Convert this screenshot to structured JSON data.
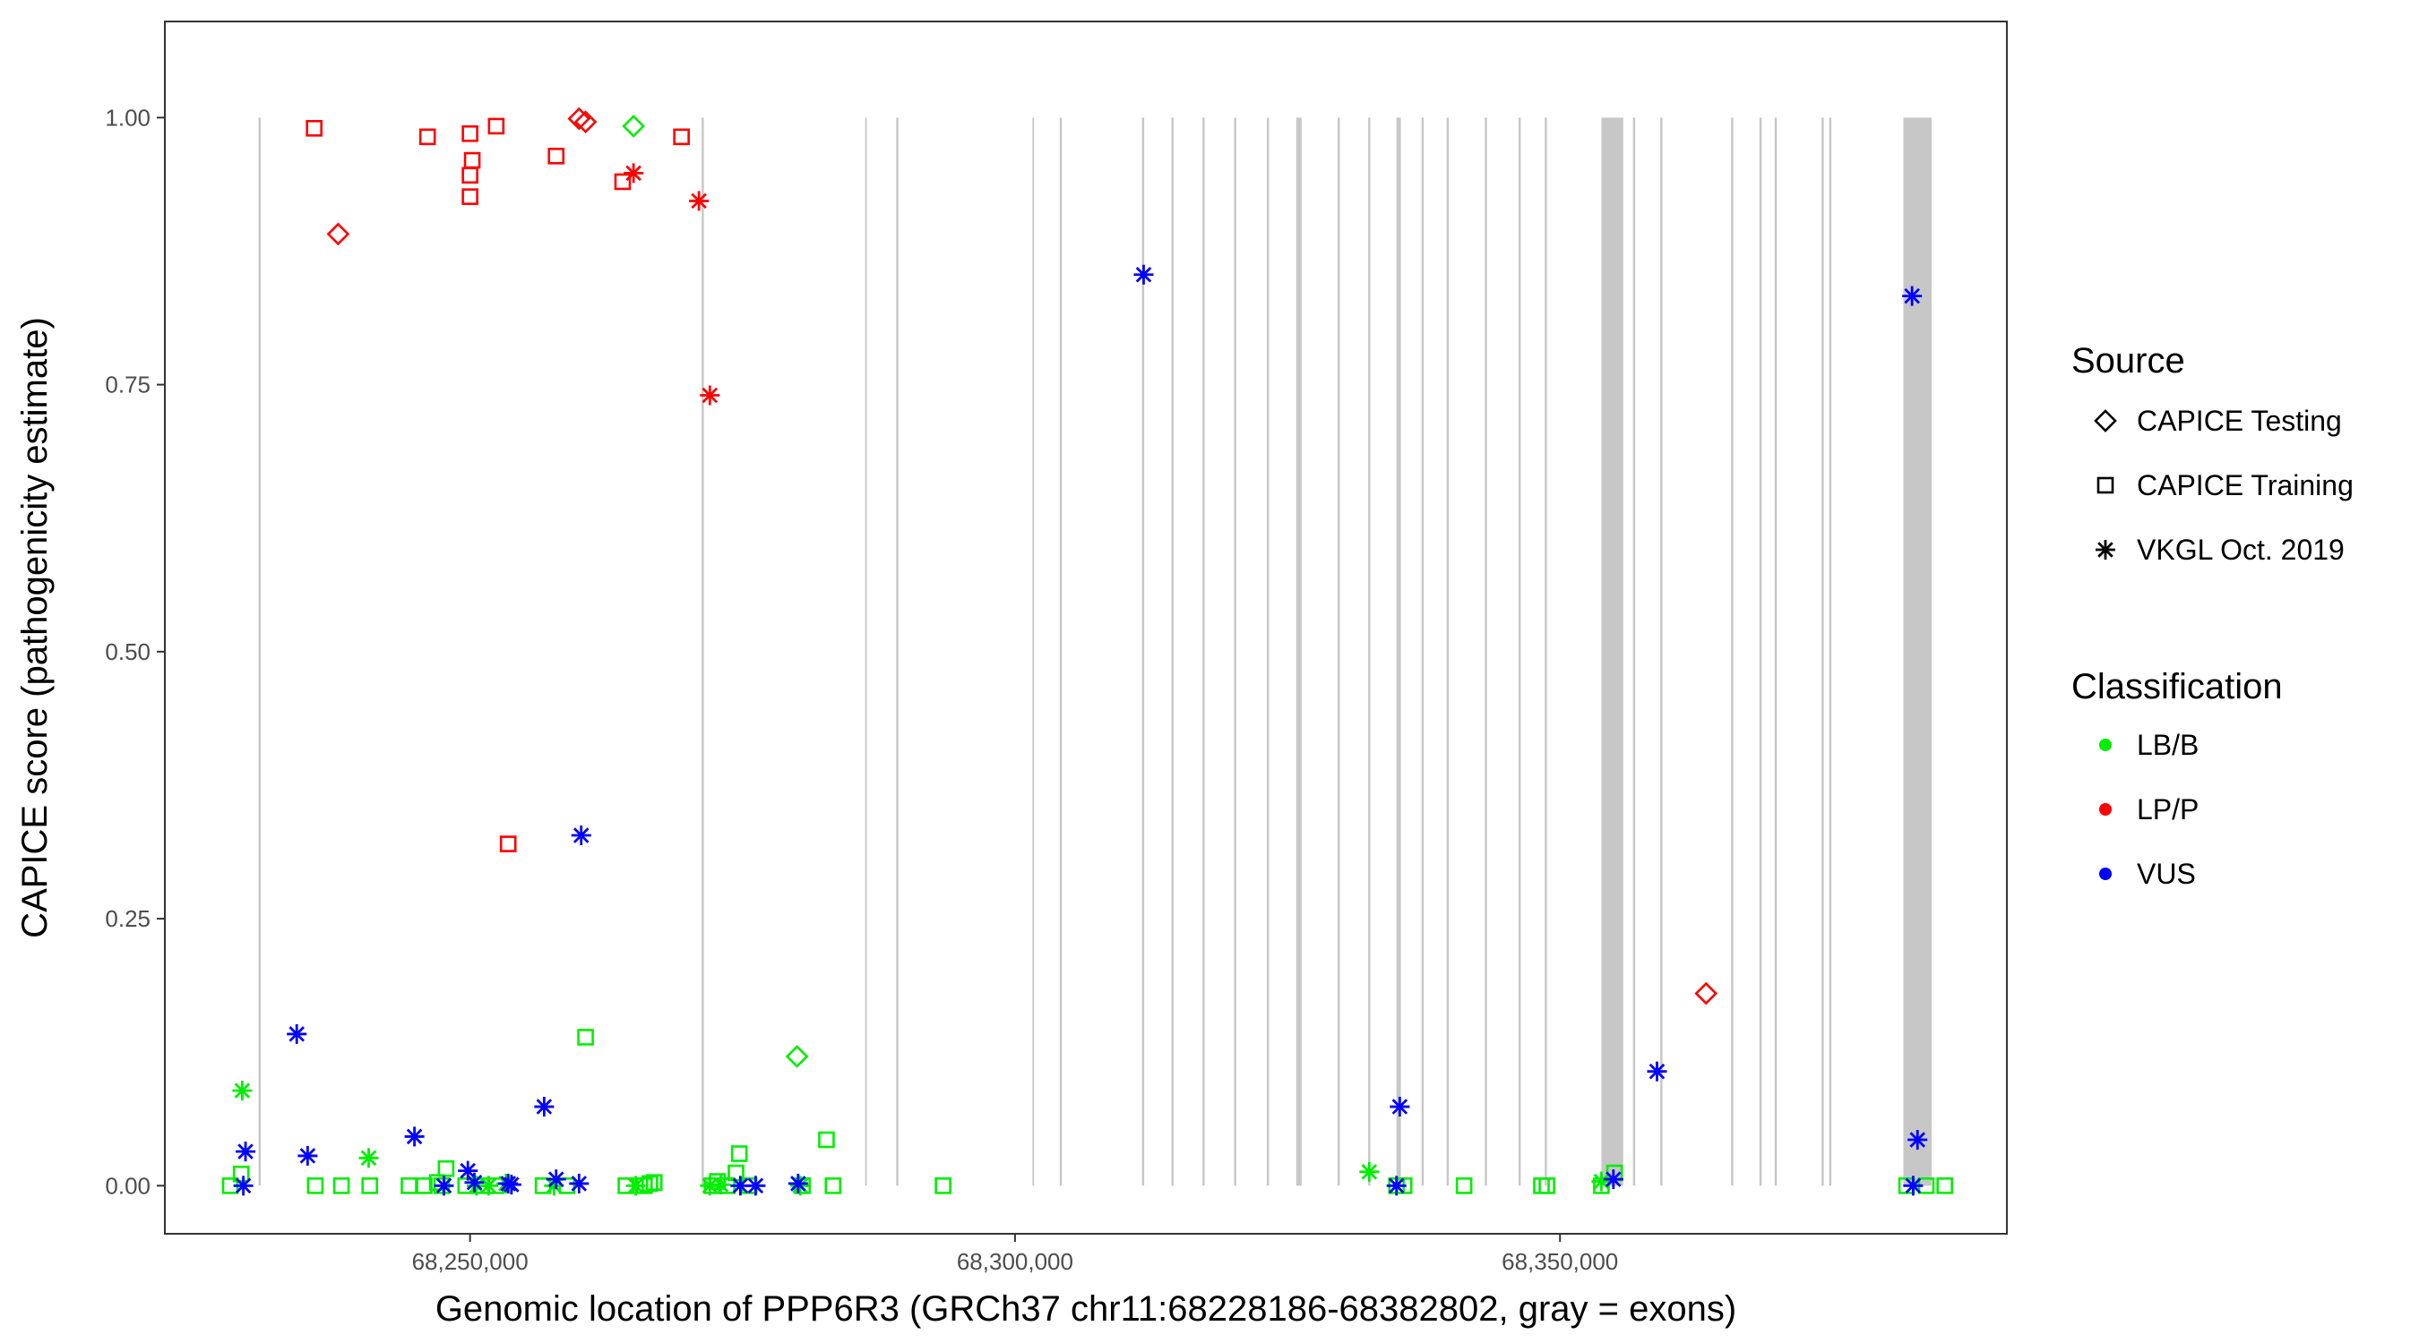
{
  "chart_data": {
    "type": "scatter",
    "xlabel": "Genomic location of PPP6R3 (GRCh37 chr11:68228186-68382802, gray = exons)",
    "ylabel": "CAPICE score (pathogenicity estimate)",
    "xlim": [
      68222000,
      68391000
    ],
    "ylim": [
      -0.045,
      1.09
    ],
    "x_ticks": [
      {
        "value": 68250000,
        "label": "68,250,000"
      },
      {
        "value": 68300000,
        "label": "68,300,000"
      },
      {
        "value": 68350000,
        "label": "68,350,000"
      }
    ],
    "y_ticks": [
      {
        "value": 0.0,
        "label": "0.00"
      },
      {
        "value": 0.25,
        "label": "0.25"
      },
      {
        "value": 0.5,
        "label": "0.50"
      },
      {
        "value": 0.75,
        "label": "0.75"
      },
      {
        "value": 1.0,
        "label": "1.00"
      }
    ],
    "grid": false,
    "exons": [
      [
        68230600,
        68230800
      ],
      [
        68271250,
        68271450
      ],
      [
        68286250,
        68286400
      ],
      [
        68289100,
        68289300
      ],
      [
        68301600,
        68301750
      ],
      [
        68304100,
        68304300
      ],
      [
        68311650,
        68311850
      ],
      [
        68314350,
        68314550
      ],
      [
        68317200,
        68317400
      ],
      [
        68320100,
        68320300
      ],
      [
        68323100,
        68323300
      ],
      [
        68325800,
        68326300
      ],
      [
        68329600,
        68329800
      ],
      [
        68332400,
        68332600
      ],
      [
        68335000,
        68335400
      ],
      [
        68337300,
        68337500
      ],
      [
        68339600,
        68339800
      ],
      [
        68343100,
        68343300
      ],
      [
        68346200,
        68346400
      ],
      [
        68348600,
        68348800
      ],
      [
        68353800,
        68355800
      ],
      [
        68356700,
        68356900
      ],
      [
        68359200,
        68359400
      ],
      [
        68365700,
        68365900
      ],
      [
        68368300,
        68368500
      ],
      [
        68369700,
        68369900
      ],
      [
        68374000,
        68374200
      ],
      [
        68374700,
        68374900
      ],
      [
        68381500,
        68384100
      ]
    ],
    "legend": {
      "position": "right",
      "source_title": "Source",
      "source_entries": [
        {
          "label": "CAPICE Testing",
          "shape": "diamond"
        },
        {
          "label": "CAPICE Training",
          "shape": "square"
        },
        {
          "label": "VKGL Oct. 2019",
          "shape": "asterisk"
        }
      ],
      "class_title": "Classification",
      "class_entries": [
        {
          "label": "LB/B",
          "color": "#00ee00"
        },
        {
          "label": "LP/P",
          "color": "#ff0000"
        },
        {
          "label": "VUS",
          "color": "#0000ff"
        }
      ]
    },
    "series": [
      {
        "source": "CAPICE Testing",
        "classification": "LP/P",
        "points": [
          [
            68237900,
            0.891
          ],
          [
            68260000,
            0.999
          ],
          [
            68260600,
            0.996
          ],
          [
            68363400,
            0.18
          ]
        ]
      },
      {
        "source": "CAPICE Testing",
        "classification": "LB/B",
        "points": [
          [
            68265000,
            0.992
          ],
          [
            68280000,
            0.121
          ]
        ]
      },
      {
        "source": "CAPICE Training",
        "classification": "LP/P",
        "points": [
          [
            68235700,
            0.99
          ],
          [
            68246100,
            0.982
          ],
          [
            68250000,
            0.985
          ],
          [
            68250200,
            0.96
          ],
          [
            68250000,
            0.946
          ],
          [
            68250000,
            0.926
          ],
          [
            68252400,
            0.992
          ],
          [
            68253500,
            0.32
          ],
          [
            68257900,
            0.964
          ],
          [
            68264000,
            0.94
          ],
          [
            68269400,
            0.982
          ]
        ]
      },
      {
        "source": "CAPICE Training",
        "classification": "LB/B",
        "points": [
          [
            68228000,
            0.0
          ],
          [
            68229000,
            0.011
          ],
          [
            68235800,
            0.0
          ],
          [
            68238200,
            0.0
          ],
          [
            68240800,
            0.0
          ],
          [
            68244400,
            0.0
          ],
          [
            68245800,
            0.0
          ],
          [
            68247000,
            0.003
          ],
          [
            68247400,
            0.0
          ],
          [
            68247800,
            0.016
          ],
          [
            68249600,
            0.0
          ],
          [
            68251000,
            0.0
          ],
          [
            68252400,
            0.0
          ],
          [
            68256700,
            0.0
          ],
          [
            68258900,
            0.0
          ],
          [
            68260600,
            0.139
          ],
          [
            68264300,
            0.0
          ],
          [
            68266000,
            0.0
          ],
          [
            68266500,
            0.002
          ],
          [
            68266900,
            0.003
          ],
          [
            68272200,
            0.0
          ],
          [
            68272700,
            0.004
          ],
          [
            68273600,
            0.0
          ],
          [
            68274400,
            0.012
          ],
          [
            68274700,
            0.03
          ],
          [
            68275600,
            0.0
          ],
          [
            68280500,
            0.0
          ],
          [
            68282700,
            0.043
          ],
          [
            68283300,
            0.0
          ],
          [
            68293400,
            0.0
          ],
          [
            68335000,
            0.0
          ],
          [
            68335700,
            0.0
          ],
          [
            68341200,
            0.0
          ],
          [
            68348300,
            0.0
          ],
          [
            68348800,
            0.0
          ],
          [
            68353800,
            0.0
          ],
          [
            68355000,
            0.012
          ],
          [
            68381800,
            0.0
          ],
          [
            68383600,
            0.0
          ],
          [
            68385300,
            0.0
          ]
        ]
      },
      {
        "source": "VKGL Oct. 2019",
        "classification": "LP/P",
        "points": [
          [
            68265000,
            0.948
          ],
          [
            68271000,
            0.922
          ],
          [
            68272000,
            0.74
          ]
        ]
      },
      {
        "source": "VKGL Oct. 2019",
        "classification": "LB/B",
        "points": [
          [
            68229100,
            0.089
          ],
          [
            68240700,
            0.026
          ],
          [
            68250600,
            0.0
          ],
          [
            68251700,
            0.0
          ],
          [
            68253300,
            0.002
          ],
          [
            68257700,
            0.0
          ],
          [
            68265200,
            0.0
          ],
          [
            68272000,
            0.0
          ],
          [
            68273000,
            0.001
          ],
          [
            68280300,
            0.0
          ],
          [
            68332500,
            0.013
          ],
          [
            68353800,
            0.004
          ]
        ]
      },
      {
        "source": "VKGL Oct. 2019",
        "classification": "VUS",
        "points": [
          [
            68229400,
            0.032
          ],
          [
            68229200,
            0.0
          ],
          [
            68234100,
            0.142
          ],
          [
            68235100,
            0.028
          ],
          [
            68244900,
            0.046
          ],
          [
            68247600,
            0.0
          ],
          [
            68249800,
            0.014
          ],
          [
            68250400,
            0.003
          ],
          [
            68253500,
            0.002
          ],
          [
            68253800,
            0.001
          ],
          [
            68256800,
            0.074
          ],
          [
            68257900,
            0.006
          ],
          [
            68260000,
            0.002
          ],
          [
            68260200,
            0.328
          ],
          [
            68274800,
            0.0
          ],
          [
            68276200,
            0.0
          ],
          [
            68280100,
            0.002
          ],
          [
            68311800,
            0.853
          ],
          [
            68335300,
            0.074
          ],
          [
            68335000,
            0.0
          ],
          [
            68354900,
            0.006
          ],
          [
            68358900,
            0.107
          ],
          [
            68382300,
            0.833
          ],
          [
            68382800,
            0.043
          ],
          [
            68382400,
            0.0
          ]
        ]
      }
    ]
  }
}
